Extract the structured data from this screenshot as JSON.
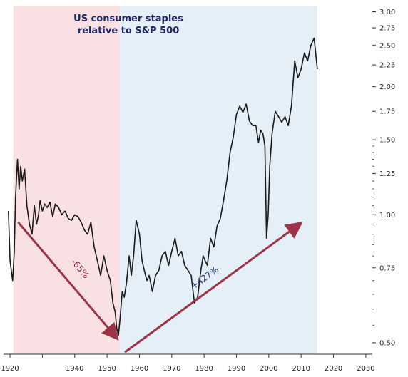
{
  "chart_data": {
    "type": "line",
    "title_lines": [
      "US consumer staples",
      "relative to S&P 500"
    ],
    "xlabel": "",
    "ylabel": "",
    "y_scale": "log",
    "xlim": [
      1918,
      2032
    ],
    "ylim": [
      0.47,
      3.1
    ],
    "x_ticks": [
      1920,
      1930,
      1940,
      1950,
      1960,
      1970,
      1980,
      1990,
      2000,
      2010,
      2020,
      2030
    ],
    "x_tick_labels": [
      "1920",
      "",
      "1940",
      "1950",
      "1960",
      "1970",
      "1980",
      "1990",
      "2000",
      "2010",
      "2020",
      "2030"
    ],
    "y_ticks": [
      0.5,
      0.75,
      1.0,
      1.25,
      1.5,
      1.75,
      2.0,
      2.25,
      2.5,
      2.75,
      3.0
    ],
    "y_tick_labels": [
      "0.50",
      "0.75",
      "1.00",
      "1.25",
      "1.50",
      "1.75",
      "2.00",
      "2.25",
      "2.50",
      "2.75",
      "3.00"
    ],
    "y_minor_ticks": [
      0.55,
      0.6,
      0.65,
      0.7,
      0.8,
      0.85,
      0.9,
      0.95,
      1.05,
      1.1,
      1.15,
      1.2,
      1.3,
      1.35,
      1.4,
      1.45
    ],
    "shaded_regions": [
      {
        "x": [
          1921,
          1954
        ],
        "color": "#f4c6cc"
      },
      {
        "x": [
          1954,
          2015
        ],
        "color": "#cfe2f3"
      }
    ],
    "series": [
      {
        "color": "#1a1a1a",
        "x": [
          1919.5,
          1920,
          1920.8,
          1921.3,
          1921.7,
          1922.3,
          1922.8,
          1923.3,
          1923.8,
          1924.5,
          1925.2,
          1926,
          1926.8,
          1927.5,
          1928.2,
          1928.8,
          1929.3,
          1930,
          1930.7,
          1931.5,
          1932.3,
          1933.2,
          1934,
          1935,
          1936,
          1937,
          1938,
          1939,
          1940,
          1941,
          1942,
          1943,
          1944,
          1945,
          1946,
          1947,
          1948,
          1949,
          1950,
          1951,
          1951.8,
          1952.5,
          1953,
          1953.5,
          1954,
          1954.7,
          1955.3,
          1956,
          1956.8,
          1957.5,
          1958.2,
          1959,
          1960,
          1960.8,
          1961.5,
          1962.3,
          1963,
          1964,
          1965,
          1966,
          1967,
          1968,
          1969,
          1970,
          1971,
          1972,
          1973,
          1974,
          1975,
          1976,
          1977,
          1978,
          1979,
          1979.7,
          1980.3,
          1981,
          1982,
          1983,
          1984,
          1985,
          1986,
          1987,
          1988,
          1989,
          1990,
          1991,
          1992,
          1993,
          1994,
          1995,
          1996,
          1996.8,
          1997.5,
          1998.2,
          1998.8,
          1999.3,
          1999.8,
          2000.3,
          2001,
          2002,
          2003,
          2004,
          2005,
          2006,
          2007,
          2008,
          2009,
          2010,
          2011,
          2012,
          2013,
          2014,
          2015
        ],
        "y": [
          1.02,
          0.78,
          0.7,
          0.82,
          1.1,
          1.35,
          1.15,
          1.3,
          1.2,
          1.28,
          1.05,
          0.95,
          0.9,
          1.05,
          0.95,
          1.0,
          1.08,
          1.02,
          1.06,
          1.04,
          1.07,
          0.99,
          1.06,
          1.04,
          1.0,
          1.02,
          0.98,
          0.97,
          1.0,
          0.99,
          0.96,
          0.92,
          0.9,
          0.96,
          0.84,
          0.78,
          0.72,
          0.8,
          0.74,
          0.7,
          0.62,
          0.59,
          0.54,
          0.52,
          0.57,
          0.66,
          0.64,
          0.69,
          0.8,
          0.72,
          0.8,
          0.97,
          0.9,
          0.78,
          0.74,
          0.7,
          0.72,
          0.66,
          0.72,
          0.74,
          0.8,
          0.82,
          0.76,
          0.82,
          0.88,
          0.8,
          0.82,
          0.76,
          0.74,
          0.72,
          0.62,
          0.64,
          0.74,
          0.8,
          0.78,
          0.76,
          0.88,
          0.84,
          0.94,
          0.98,
          1.08,
          1.2,
          1.4,
          1.52,
          1.72,
          1.8,
          1.74,
          1.82,
          1.66,
          1.62,
          1.62,
          1.48,
          1.58,
          1.55,
          1.45,
          0.88,
          1.0,
          1.3,
          1.55,
          1.75,
          1.7,
          1.65,
          1.7,
          1.62,
          1.8,
          2.3,
          2.1,
          2.2,
          2.4,
          2.3,
          2.5,
          2.6,
          2.2
        ]
      }
    ],
    "annotations": [
      {
        "text": "-65%",
        "color": "#8b2a3c",
        "from": [
          1922.5,
          0.96
        ],
        "to": [
          1952.8,
          0.515
        ]
      },
      {
        "text": "+427%",
        "color": "#2b3a7a",
        "from": [
          1955.5,
          0.475
        ],
        "to": [
          2009.5,
          0.95
        ]
      }
    ],
    "arrow_color": "#9c3346",
    "grid": false,
    "legend": "none"
  }
}
